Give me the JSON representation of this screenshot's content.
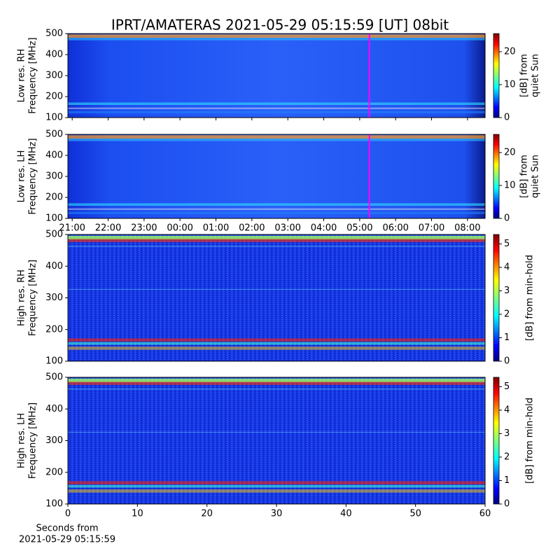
{
  "title": "IPRT/AMATERAS 2021-05-29 05:15:59 [UT]   08bit",
  "chart_data": [
    {
      "type": "heatmap",
      "ylabel": [
        "Low res. RH",
        "Frequency [MHz]"
      ],
      "ylim": [
        100,
        500
      ],
      "yticks": [
        100,
        200,
        300,
        400,
        500
      ],
      "xlim": [
        20.88,
        32.49
      ],
      "marker": {
        "x": 29.27,
        "color": "#ff00ff"
      },
      "colorbar": {
        "label": [
          "[dB] from",
          "quiet Sun"
        ],
        "lim": [
          0,
          25.5
        ],
        "ticks": [
          0,
          10,
          20
        ]
      }
    },
    {
      "type": "heatmap",
      "ylabel": [
        "Low res. LH",
        "Frequency [MHz]"
      ],
      "ylim": [
        100,
        500
      ],
      "yticks": [
        100,
        200,
        300,
        400,
        500
      ],
      "xlim": [
        20.88,
        32.49
      ],
      "xticks": [
        {
          "value": 21,
          "label": "21:00"
        },
        {
          "value": 22,
          "label": "22:00"
        },
        {
          "value": 23,
          "label": "23:00"
        },
        {
          "value": 24,
          "label": "00:00"
        },
        {
          "value": 25,
          "label": "01:00"
        },
        {
          "value": 26,
          "label": "02:00"
        },
        {
          "value": 27,
          "label": "03:00"
        },
        {
          "value": 28,
          "label": "04:00"
        },
        {
          "value": 29,
          "label": "05:00"
        },
        {
          "value": 30,
          "label": "06:00"
        },
        {
          "value": 31,
          "label": "07:00"
        },
        {
          "value": 32,
          "label": "08:00"
        }
      ],
      "marker": {
        "x": 29.27,
        "color": "#ff00ff"
      },
      "colorbar": {
        "label": [
          "[dB] from",
          "quiet Sun"
        ],
        "lim": [
          0,
          25.5
        ],
        "ticks": [
          0,
          10,
          20
        ]
      }
    },
    {
      "type": "heatmap",
      "ylabel": [
        "High res. RH",
        "Frequency [MHz]"
      ],
      "ylim": [
        100,
        500
      ],
      "yticks": [
        100,
        200,
        300,
        400,
        500
      ],
      "xlim": [
        0,
        60
      ],
      "colorbar": {
        "label": [
          "[dB] from min-hold"
        ],
        "lim": [
          0,
          5.4
        ],
        "ticks": [
          0,
          1,
          2,
          3,
          4,
          5
        ]
      }
    },
    {
      "type": "heatmap",
      "ylabel": [
        "High res. LH",
        "Frequency [MHz]"
      ],
      "ylim": [
        100,
        500
      ],
      "yticks": [
        100,
        200,
        300,
        400,
        500
      ],
      "xlim": [
        0,
        60
      ],
      "xticks": [
        0,
        10,
        20,
        30,
        40,
        50,
        60
      ],
      "xlabel": [
        "Seconds from",
        "2021-05-29 05:15:59"
      ],
      "colorbar": {
        "label": [
          "[dB] from min-hold"
        ],
        "lim": [
          0,
          5.4
        ],
        "ticks": [
          0,
          1,
          2,
          3,
          4,
          5
        ]
      }
    }
  ]
}
